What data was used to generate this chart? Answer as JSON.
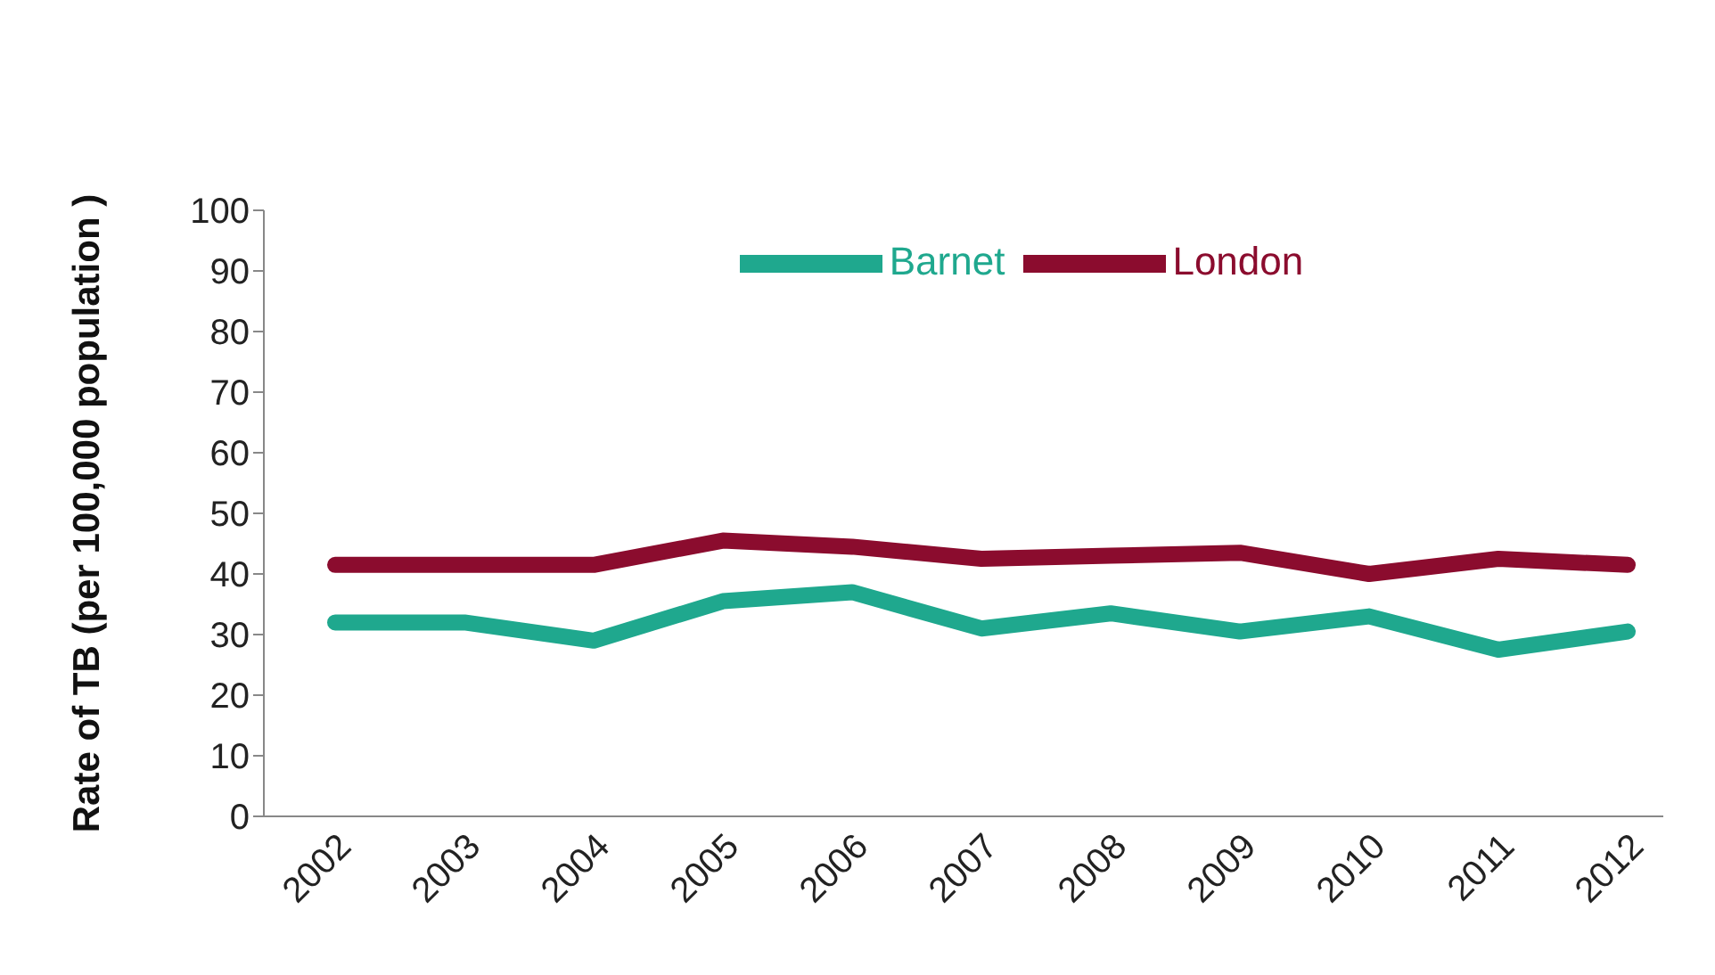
{
  "chart_data": {
    "type": "line",
    "ylabel": "Rate of TB (per 100,000 population )",
    "categories": [
      "2002",
      "2003",
      "2004",
      "2005",
      "2006",
      "2007",
      "2008",
      "2009",
      "2010",
      "2011",
      "2012"
    ],
    "series": [
      {
        "name": "Barnet",
        "color": "#1fa88e",
        "values": [
          32,
          32,
          29,
          35.5,
          37,
          31,
          33.5,
          30.5,
          33,
          27.5,
          30.5
        ]
      },
      {
        "name": "London",
        "color": "#8b0c2e",
        "values": [
          41.5,
          41.5,
          41.5,
          45.5,
          44.5,
          42.5,
          43,
          43.5,
          40,
          42.5,
          41.5
        ]
      }
    ],
    "ylim": [
      0,
      100
    ],
    "yticks": [
      0,
      10,
      20,
      30,
      40,
      50,
      60,
      70,
      80,
      90,
      100
    ],
    "legend": "top",
    "grid": false,
    "marker": "none",
    "line_style": "solid"
  }
}
